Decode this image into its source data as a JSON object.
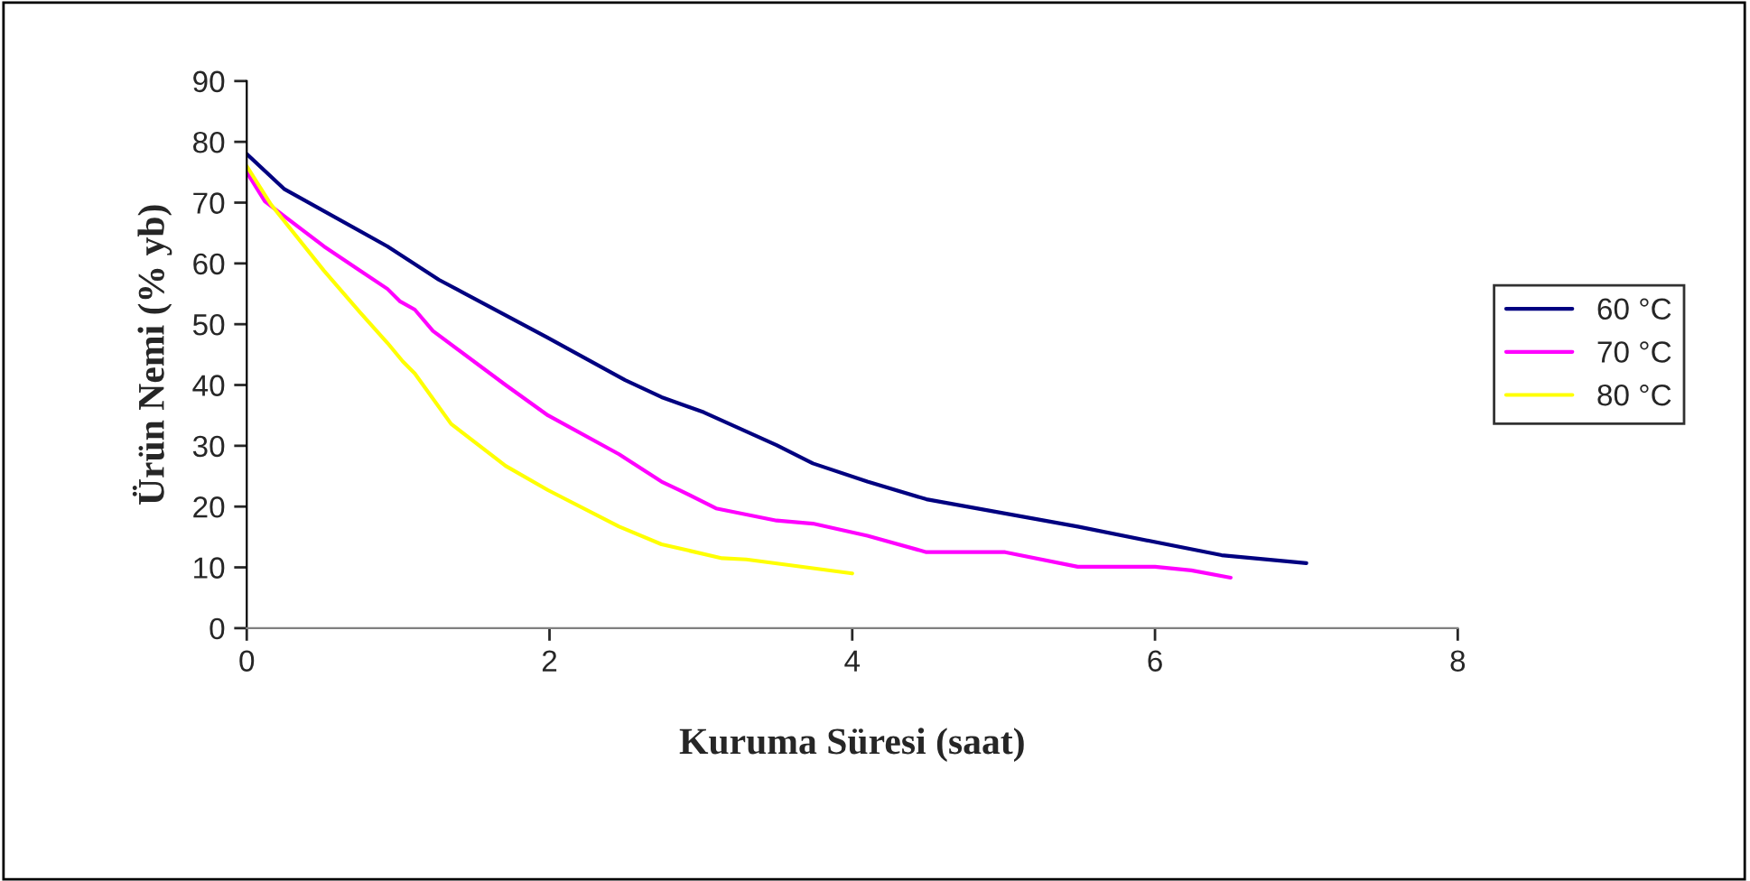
{
  "chart_data": {
    "type": "line",
    "xlabel": "Kuruma Süresi (saat)",
    "ylabel": "Ürün Nemi (% yb)",
    "xlim": [
      0,
      8
    ],
    "xticks": [
      0,
      2,
      4,
      6,
      8
    ],
    "ylim": [
      0,
      90
    ],
    "yticks": [
      0,
      10,
      20,
      30,
      40,
      50,
      60,
      70,
      80,
      90
    ],
    "grid": false,
    "legend": "right",
    "marker": "none",
    "line_style": "solid",
    "series": [
      {
        "name": "60 °C",
        "color": "#000080",
        "x": [
          0,
          0.25,
          0.93,
          1.27,
          1.98,
          2.5,
          2.74,
          3.02,
          3.5,
          3.74,
          4.1,
          4.49,
          5.49,
          6.44,
          7.0
        ],
        "values": [
          78,
          72.2,
          62.8,
          57.3,
          47.9,
          40.8,
          38,
          35.5,
          30.1,
          27.1,
          24.1,
          21.2,
          16.7,
          12,
          10.7
        ]
      },
      {
        "name": "70 °C",
        "color": "#ff00ff",
        "x": [
          0,
          0.12,
          0.51,
          0.75,
          0.93,
          1.01,
          1.11,
          1.23,
          1.71,
          1.99,
          2.46,
          2.74,
          2.86,
          3.1,
          3.5,
          3.74,
          4.1,
          4.49,
          5.01,
          5.49,
          6.0,
          6.24,
          6.5
        ],
        "values": [
          75,
          70.2,
          62.8,
          58.8,
          55.8,
          53.8,
          52.4,
          48.9,
          40,
          35,
          28.6,
          24.1,
          22.7,
          19.7,
          17.7,
          17.2,
          15.2,
          12.5,
          12.5,
          10.1,
          10.1,
          9.5,
          8.3
        ]
      },
      {
        "name": "80 °C",
        "color": "#ffff00",
        "x": [
          0,
          0.16,
          0.51,
          0.75,
          0.93,
          1.03,
          1.11,
          1.35,
          1.71,
          1.99,
          2.46,
          2.74,
          3.14,
          3.3,
          4.0
        ],
        "values": [
          76,
          69.7,
          58.8,
          51.9,
          46.9,
          43.9,
          41.9,
          33.6,
          26.7,
          22.7,
          16.7,
          13.8,
          11.5,
          11.3,
          9.0
        ]
      }
    ]
  }
}
